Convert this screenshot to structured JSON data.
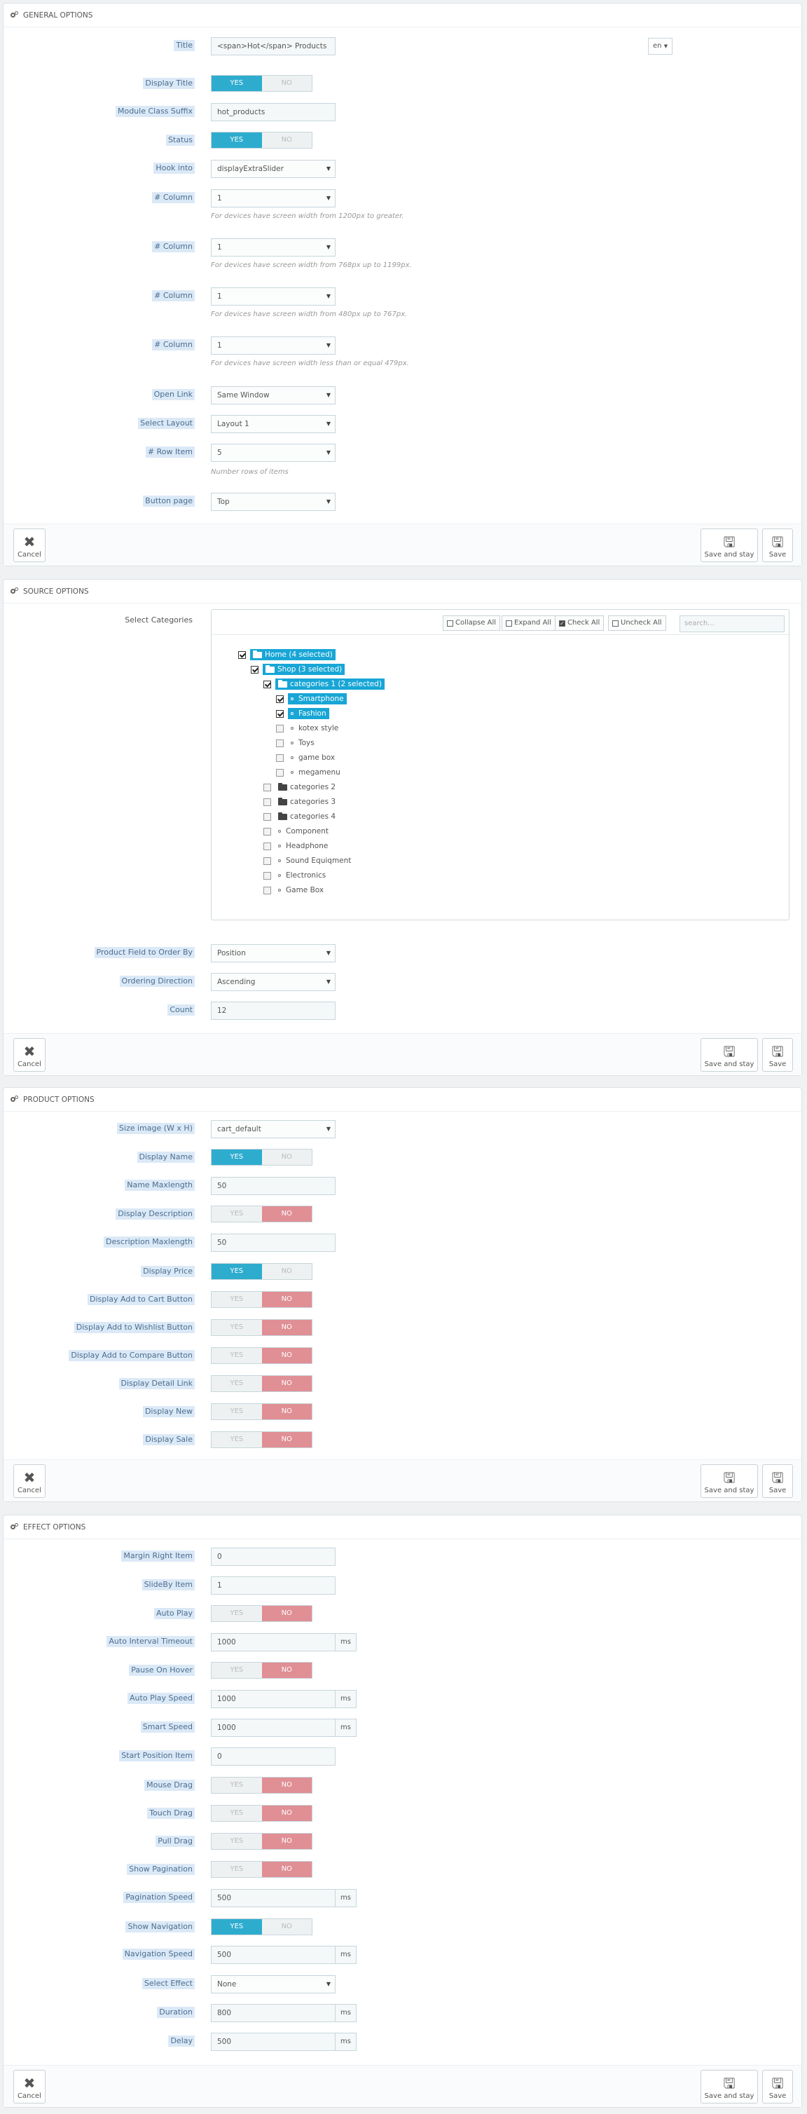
{
  "general": {
    "header": "GENERAL OPTIONS",
    "title_label": "Title",
    "title_value": "<span>Hot</span> Products",
    "lang": "en",
    "display_title_label": "Display Title",
    "module_class_label": "Module Class Suffix",
    "module_class_value": "hot_products",
    "status_label": "Status",
    "hook_label": "Hook into",
    "hook_value": "displayExtraSlider",
    "col_label": "# Column",
    "col_value": "1",
    "help_1200": "For devices have screen width from 1200px to greater.",
    "help_768": "For devices have screen width from 768px up to 1199px.",
    "help_480": "For devices have screen width from 480px up to 767px.",
    "help_479": "For devices have screen width less than or equal 479px.",
    "open_link_label": "Open Link",
    "open_link_value": "Same Window",
    "layout_label": "Select Layout",
    "layout_value": "Layout 1",
    "row_item_label": "# Row Item",
    "row_item_value": "5",
    "row_item_help": "Number rows of items",
    "button_page_label": "Button page",
    "button_page_value": "Top"
  },
  "source": {
    "header": "SOURCE OPTIONS",
    "categories_label": "Select Categories",
    "collapse_all": "Collapse All",
    "expand_all": "Expand All",
    "check_all": "Check All",
    "uncheck_all": "Uncheck All",
    "search_placeholder": "search...",
    "tree": {
      "home": "Home (4 selected)",
      "shop": "Shop (3 selected)",
      "cat1": "categories 1 (2 selected)",
      "smartphone": "Smartphone",
      "fashion": "Fashion",
      "kotex": "kotex style",
      "toys": "Toys",
      "gamebox": "game box",
      "megamenu": "megamenu",
      "cat2": "categories 2",
      "cat3": "categories 3",
      "cat4": "categories 4",
      "component": "Component",
      "headphone": "Headphone",
      "sound": "Sound Equiqment",
      "electronics": "Electronics",
      "gamebox2": "Game Box"
    },
    "order_field_label": "Product Field to Order By",
    "order_field_value": "Position",
    "order_dir_label": "Ordering Direction",
    "order_dir_value": "Ascending",
    "count_label": "Count",
    "count_value": "12"
  },
  "product": {
    "header": "PRODUCT OPTIONS",
    "size_label": "Size image (W x H)",
    "size_value": "cart_default",
    "display_name_label": "Display Name",
    "name_max_label": "Name Maxlength",
    "name_max_value": "50",
    "display_desc_label": "Display Description",
    "desc_max_label": "Description Maxlength",
    "desc_max_value": "50",
    "display_price_label": "Display Price",
    "cart_label": "Display Add to Cart Button",
    "wishlist_label": "Display Add to Wishlist Button",
    "compare_label": "Display Add to Compare Button",
    "detail_label": "Display Detail Link",
    "new_label": "Display New",
    "sale_label": "Display Sale"
  },
  "effect": {
    "header": "EFFECT OPTIONS",
    "margin_label": "Margin Right Item",
    "margin_value": "0",
    "slideby_label": "SlideBy Item",
    "slideby_value": "1",
    "autoplay_label": "Auto Play",
    "interval_label": "Auto Interval Timeout",
    "interval_value": "1000",
    "pause_label": "Pause On Hover",
    "autoplay_speed_label": "Auto Play Speed",
    "autoplay_speed_value": "1000",
    "smart_label": "Smart Speed",
    "smart_value": "1000",
    "start_label": "Start Position Item",
    "start_value": "0",
    "mouse_label": "Mouse Drag",
    "touch_label": "Touch Drag",
    "pull_label": "Pull Drag",
    "show_pag_label": "Show Pagination",
    "pag_speed_label": "Pagination Speed",
    "pag_speed_value": "500",
    "show_nav_label": "Show Navigation",
    "nav_speed_label": "Navigation Speed",
    "nav_speed_value": "500",
    "effect_label": "Select Effect",
    "effect_value": "None",
    "duration_label": "Duration",
    "duration_value": "800",
    "delay_label": "Delay",
    "delay_value": "500"
  },
  "common": {
    "yes": "YES",
    "no": "NO",
    "ms": "ms",
    "cancel": "Cancel",
    "save_stay": "Save and stay",
    "save": "Save",
    "dropdown_caret": "▼",
    "cancel_glyph": "✖",
    "save_glyph": "🖫",
    "check_glyph": "✓",
    "colors": {
      "accent": "#2eacce",
      "no_active": "#e08f95",
      "label_bg": "#dbe9f7",
      "tree_selected": "#18a6d6"
    }
  }
}
